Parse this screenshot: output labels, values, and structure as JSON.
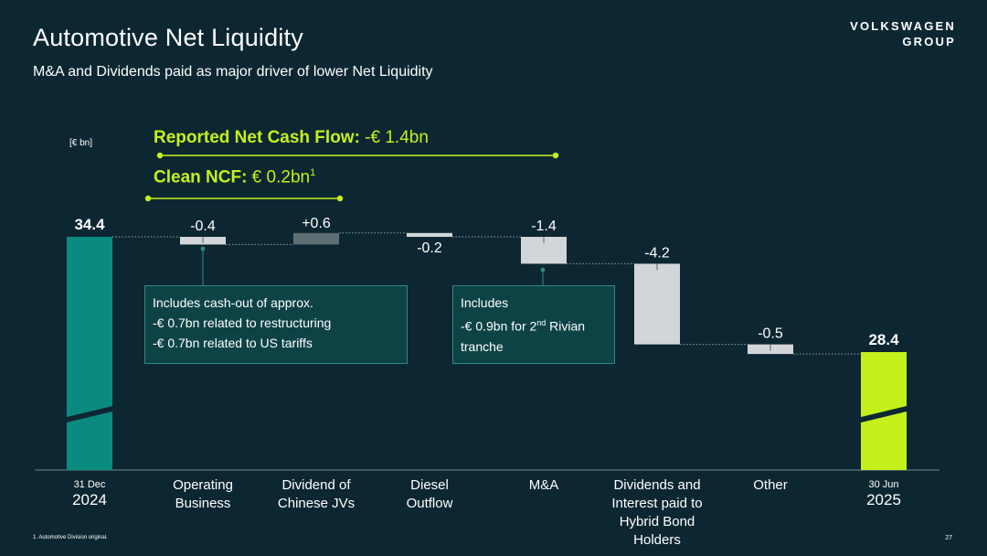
{
  "header": {
    "title": "Automotive Net Liquidity",
    "subtitle": "M&A and Dividends paid as major driver of lower Net Liquidity",
    "logo_line1": "VOLKSWAGEN",
    "logo_line2": "GROUP"
  },
  "unit_label": "[€ bn]",
  "ncf": {
    "reported_label": "Reported Net Cash Flow:",
    "reported_value": " -€ 1.4bn",
    "clean_label": "Clean NCF:",
    "clean_value": " € 0.2bn",
    "clean_footnote_ref": "1"
  },
  "callouts": {
    "operating": {
      "line1": "Includes cash-out of approx.",
      "line2": "-€ 0.7bn related to restructuring",
      "line3": "-€ 0.7bn related to US tariffs"
    },
    "ma": {
      "line1": "Includes",
      "line2_pre": "-€ 0.9bn for 2",
      "line2_sup": "nd",
      "line2_post": " Rivian",
      "line3": "tranche"
    }
  },
  "footnote": "1. Automotive Division original.",
  "page_number": "27",
  "colors": {
    "background": "#0d2732",
    "start_bar": "#0b8a80",
    "end_bar": "#c4f01c",
    "negative_bar": "#d2d6d9",
    "positive_bar": "#5d6e72",
    "accent": "#c4f01c",
    "callout_border": "#2f8a82"
  },
  "chart_data": {
    "type": "waterfall",
    "unit": "€ bn",
    "axis_break": true,
    "categories": [
      {
        "lines": [
          "31 Dec",
          "2024"
        ],
        "style": "date"
      },
      {
        "lines": [
          "Operating",
          "Business"
        ],
        "style": "normal"
      },
      {
        "lines": [
          "Dividend of",
          "Chinese JVs"
        ],
        "style": "normal"
      },
      {
        "lines": [
          "Diesel",
          "Outflow"
        ],
        "style": "normal"
      },
      {
        "lines": [
          "M&A"
        ],
        "style": "normal"
      },
      {
        "lines": [
          "Dividends and",
          "Interest paid to",
          "Hybrid Bond",
          "Holders"
        ],
        "style": "normal"
      },
      {
        "lines": [
          "Other"
        ],
        "style": "normal"
      },
      {
        "lines": [
          "30 Jun",
          "2025"
        ],
        "style": "date"
      }
    ],
    "values": [
      34.4,
      -0.4,
      0.6,
      -0.2,
      -1.4,
      -4.2,
      -0.5,
      28.4
    ],
    "labels": [
      "34.4",
      "-0.4",
      "+0.6",
      "-0.2",
      "-1.4",
      "-4.2",
      "-0.5",
      "28.4"
    ],
    "kinds": [
      "total",
      "delta",
      "delta",
      "delta",
      "delta",
      "delta",
      "delta",
      "total"
    ],
    "brackets": [
      {
        "label_ref": "reported",
        "from_category": 1,
        "to_category": 4
      },
      {
        "label_ref": "clean",
        "from_category": 1,
        "to_category": 2
      }
    ]
  }
}
